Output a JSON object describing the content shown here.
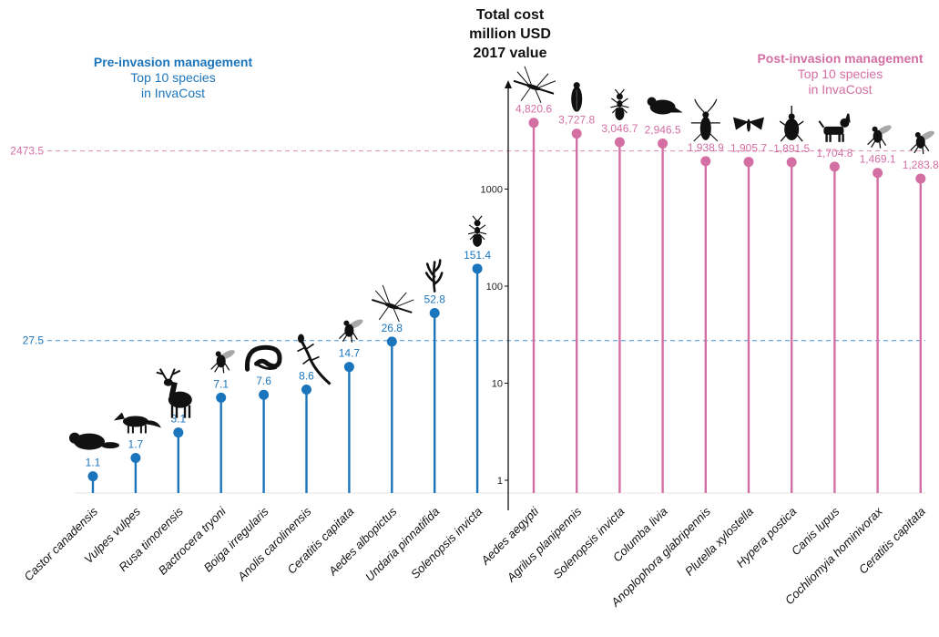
{
  "header": {
    "pre": {
      "title": "Pre-invasion management",
      "line1": "Top 10 species",
      "line2": "in InvaCost"
    },
    "post": {
      "title": "Post-invasion management",
      "line1": "Top 10 species",
      "line2": "in InvaCost"
    },
    "cost": {
      "line1": "Total cost",
      "line2": "million USD",
      "line3": "2017 value"
    }
  },
  "colors": {
    "pre": "#1b75bc",
    "post": "#d46fa4",
    "axis": "#111111",
    "grid": "#e6e6e6"
  },
  "chart_data": {
    "type": "lollipop",
    "yscale": "log",
    "ylim": [
      0.7,
      7000
    ],
    "yticks": [
      1,
      10,
      100,
      1000
    ],
    "ytick_labels": [
      "1",
      "10",
      "100",
      "1000"
    ],
    "reference_lines": [
      {
        "value": 27.5,
        "label": "27.5",
        "group": "pre"
      },
      {
        "value": 2473.5,
        "label": "2473.5",
        "group": "post"
      }
    ],
    "series": [
      {
        "name": "Pre-invasion management",
        "group": "pre",
        "categories": [
          "Castor canadensis",
          "Vulpes vulpes",
          "Rusa timorensis",
          "Bactrocera tryoni",
          "Boiga irregularis",
          "Anolis carolinensis",
          "Ceratitis capitata",
          "Aedes albopictus",
          "Undaria pinnatifida",
          "Solenopsis invicta"
        ],
        "values": [
          1.1,
          1.7,
          3.1,
          7.1,
          7.6,
          8.6,
          14.7,
          26.8,
          52.8,
          151.4
        ],
        "labels": [
          "1.1",
          "1.7",
          "3.1",
          "7.1",
          "7.6",
          "8.6",
          "14.7",
          "26.8",
          "52.8",
          "151.4"
        ],
        "icons": [
          "beaver-icon",
          "fox-icon",
          "deer-icon",
          "fruit-fly-icon",
          "snake-icon",
          "lizard-icon",
          "fruit-fly-icon",
          "mosquito-icon",
          "seaweed-icon",
          "ant-icon"
        ]
      },
      {
        "name": "Post-invasion management",
        "group": "post",
        "categories": [
          "Aedes aegypti",
          "Agrilus planipennis",
          "Solenopsis invicta",
          "Columba livia",
          "Anoplophora glabripennis",
          "Plutella xylostella",
          "Hypera postica",
          "Canis lupus",
          "Cochliomyia hominivorax",
          "Ceratitis capitata"
        ],
        "values": [
          4820.6,
          3727.8,
          3046.7,
          2946.5,
          1938.9,
          1905.7,
          1891.5,
          1704.8,
          1469.1,
          1283.8
        ],
        "labels": [
          "4,820.6",
          "3,727.8",
          "3,046.7",
          "2,946.5",
          "1,938.9",
          "1,905.7",
          "1,891.5",
          "1,704.8",
          "1,469.1",
          "1,283.8"
        ],
        "icons": [
          "mosquito-icon",
          "beetle-icon",
          "ant-icon",
          "pigeon-icon",
          "longhorn-beetle-icon",
          "moth-icon",
          "weevil-icon",
          "dog-icon",
          "screwworm-fly-icon",
          "fruit-fly-icon"
        ]
      }
    ]
  }
}
